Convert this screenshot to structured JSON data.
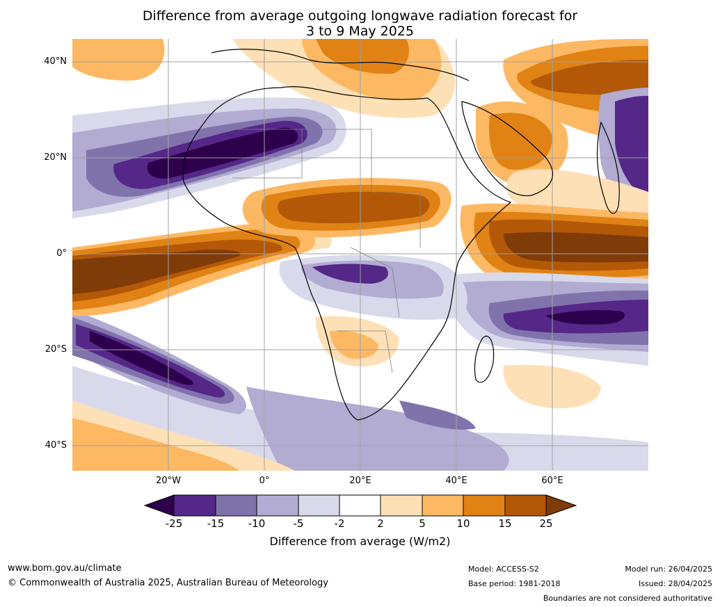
{
  "title": {
    "line1": "Difference from average outgoing longwave radiation forecast for",
    "line2": "3 to 9 May 2025"
  },
  "map": {
    "lat_labels": [
      "40°N",
      "20°N",
      "0°",
      "20°S",
      "40°S"
    ],
    "lon_labels": [
      "20°W",
      "0°",
      "20°E",
      "40°E",
      "60°E"
    ],
    "palette": {
      "lt_m25": "#2d004b",
      "m25_m15": "#542788",
      "m15_m10": "#8073ac",
      "m10_m5": "#b2abd2",
      "m5_m2": "#d8daeb",
      "m2_2": "#ffffff",
      "p2_5": "#fee0b6",
      "p5_10": "#fdb863",
      "p10_15": "#e08214",
      "p15_25": "#b35806",
      "gt_25": "#7f3b08"
    },
    "coastline_color": "#000000",
    "border_color": "#808080"
  },
  "colorbar": {
    "ticks": [
      "-25",
      "-15",
      "-10",
      "-5",
      "-2",
      "2",
      "5",
      "10",
      "15",
      "25"
    ],
    "label": "Difference from average (W/m2)"
  },
  "footer": {
    "website": "www.bom.gov.au/climate",
    "copyright": "© Commonwealth of Australia 2025, Australian Bureau of Meteorology",
    "model": "Model: ACCESS-S2",
    "base_period": "Base period: 1981-2018",
    "model_run": "Model run: 26/04/2025",
    "issued": "Issued: 28/04/2025",
    "disclaimer": "Boundaries are not considered authoritative"
  }
}
